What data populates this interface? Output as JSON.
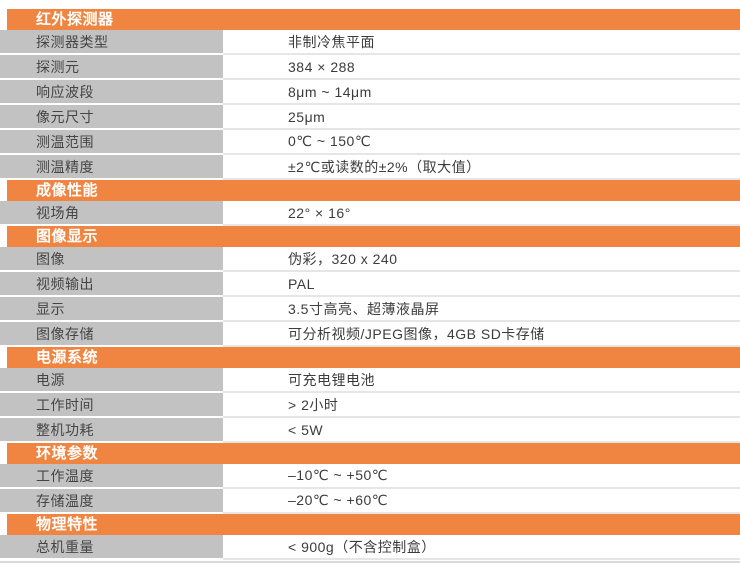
{
  "colors": {
    "section_header_bg": "#ef8540",
    "section_header_text": "#ffffff",
    "label_cell_bg": "#c2c2c2",
    "value_row_separator": "#e6e6e6",
    "label_text": "#454545",
    "value_text": "#3c3c3c"
  },
  "table": {
    "sections": [
      {
        "title": "红外探测器",
        "rows": [
          {
            "label": "探测器类型",
            "value": "非制冷焦平面"
          },
          {
            "label": "探测元",
            "value": "384 × 288"
          },
          {
            "label": "响应波段",
            "value": "8μm ~ 14μm"
          },
          {
            "label": "像元尺寸",
            "value": "25μm"
          },
          {
            "label": "测温范围",
            "value": "0℃ ~ 150℃"
          },
          {
            "label": "测温精度",
            "value": "±2℃或读数的±2%（取大值）"
          }
        ]
      },
      {
        "title": "成像性能",
        "rows": [
          {
            "label": "视场角",
            "value": "22°  × 16°"
          }
        ]
      },
      {
        "title": "图像显示",
        "rows": [
          {
            "label": "图像",
            "value": "伪彩，320 x 240"
          },
          {
            "label": "视频输出",
            "value": "PAL"
          },
          {
            "label": "显示",
            "value": "3.5寸高亮、超薄液晶屏"
          },
          {
            "label": "图像存储",
            "value": "可分析视频/JPEG图像，4GB SD卡存储"
          }
        ]
      },
      {
        "title": "电源系统",
        "rows": [
          {
            "label": "电源",
            "value": "可充电锂电池"
          },
          {
            "label": "工作时间",
            "value": "> 2小时"
          },
          {
            "label": "整机功耗",
            "value": "< 5W"
          }
        ]
      },
      {
        "title": "环境参数",
        "rows": [
          {
            "label": "工作温度",
            "value": "–10℃ ~ +50℃"
          },
          {
            "label": "存储温度",
            "value": "–20℃ ~ +60℃"
          }
        ]
      },
      {
        "title": "物理特性",
        "rows": [
          {
            "label": "总机重量",
            "value": "< 900g（不含控制盒）"
          }
        ]
      }
    ]
  }
}
